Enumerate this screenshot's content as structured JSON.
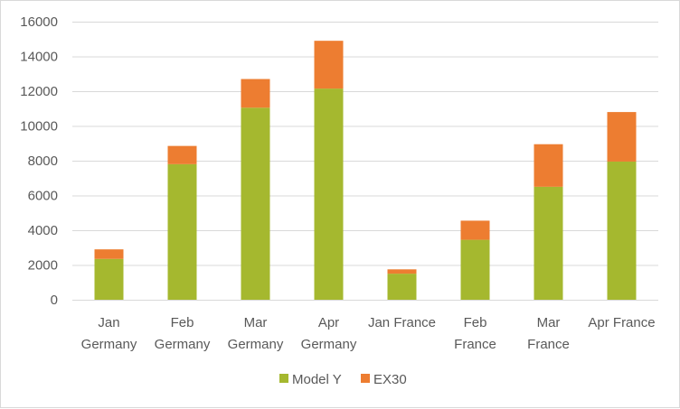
{
  "chart_data": {
    "type": "bar",
    "stacked": true,
    "categories": [
      [
        "Jan",
        "Germany"
      ],
      [
        "Feb",
        "Germany"
      ],
      [
        "Mar",
        "Germany"
      ],
      [
        "Apr",
        "Germany"
      ],
      [
        "Jan France"
      ],
      [
        "Feb",
        "France"
      ],
      [
        "Mar",
        "France"
      ],
      [
        "Apr France"
      ]
    ],
    "series": [
      {
        "name": "Model Y",
        "color": "#a5b82f",
        "values": [
          2350,
          7800,
          11050,
          12150,
          1500,
          3450,
          6500,
          7950
        ]
      },
      {
        "name": "EX30",
        "color": "#ed7d31",
        "values": [
          550,
          1050,
          1650,
          2750,
          250,
          1100,
          2450,
          2850
        ]
      }
    ],
    "yticks": [
      0,
      2000,
      4000,
      6000,
      8000,
      10000,
      12000,
      14000,
      16000
    ],
    "ylim": [
      0,
      16000
    ],
    "grid": true,
    "legend": "bottom"
  }
}
